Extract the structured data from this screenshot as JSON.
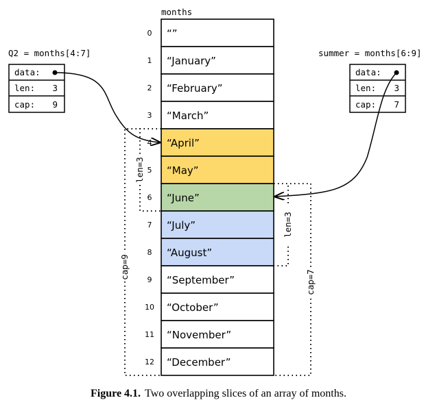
{
  "array": {
    "name": "months",
    "cells": [
      "“”",
      "“January”",
      "“February”",
      "“March”",
      "“April”",
      "“May”",
      "“June”",
      "“July”",
      "“August”",
      "“September”",
      "“October”",
      "“November”",
      "“December”"
    ],
    "indices": [
      "0",
      "1",
      "2",
      "3",
      "4",
      "5",
      "6",
      "7",
      "8",
      "9",
      "10",
      "11",
      "12"
    ]
  },
  "colors": {
    "q2_only": "#fdd96c",
    "overlap": "#b7d7a8",
    "summer_only": "#c9daf8",
    "default": "#ffffff"
  },
  "slices": [
    {
      "title": "Q2 = months[4:7]",
      "fields": [
        {
          "label": "data:",
          "value": ""
        },
        {
          "label": "len:",
          "value": "3"
        },
        {
          "label": "cap:",
          "value": "9"
        }
      ],
      "len_label": "len=3",
      "cap_label": "cap=9"
    },
    {
      "title": "summer = months[6:9]",
      "fields": [
        {
          "label": "data:",
          "value": ""
        },
        {
          "label": "len:",
          "value": "3"
        },
        {
          "label": "cap:",
          "value": "7"
        }
      ],
      "len_label": "len=3",
      "cap_label": "cap=7"
    }
  ],
  "caption": {
    "label": "Figure 4.1.",
    "text": "Two overlapping slices of an array of months."
  }
}
